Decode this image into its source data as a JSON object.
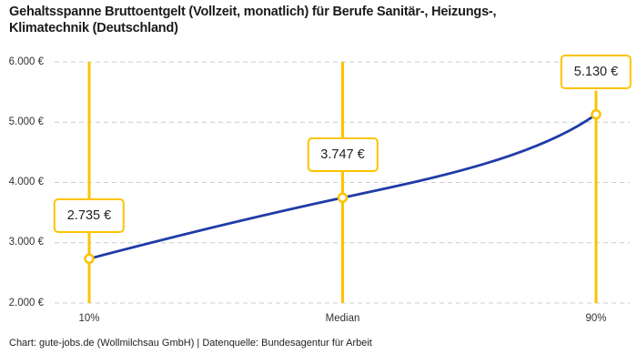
{
  "title": "Gehaltsspanne Bruttoentgelt (Vollzeit, monatlich) für Berufe Sanitär-, Heizungs-, Klimatechnik (Deutschland)",
  "footer": "Chart: gute-jobs.de (Wollmilchsau GmbH) | Datenquelle: Bundesagentur für Arbeit",
  "colors": {
    "accent_yellow": "#FDC300",
    "line_blue": "#1F3CA6",
    "grid_gray": "#CCCCCC",
    "text_dark": "#222222",
    "tick_text": "#333333",
    "background": "#FFFFFF"
  },
  "chart_data": {
    "type": "line",
    "title": "Gehaltsspanne Bruttoentgelt (Vollzeit, monatlich) für Berufe Sanitär-, Heizungs-, Klimatechnik (Deutschland)",
    "categories": [
      "10%",
      "Median",
      "90%"
    ],
    "values": [
      2735,
      3747,
      5130
    ],
    "point_labels": [
      "2.735 €",
      "3.747 €",
      "5.130 €"
    ],
    "xlabel": "",
    "ylabel": "",
    "ylim": [
      2000,
      6000
    ],
    "y_ticks": [
      {
        "value": 2000,
        "label": "2.000 €"
      },
      {
        "value": 3000,
        "label": "3.000 €"
      },
      {
        "value": 4000,
        "label": "4.000 €"
      },
      {
        "value": 5000,
        "label": "5.000 €"
      },
      {
        "value": 6000,
        "label": "6.000 €"
      }
    ],
    "grid": "horizontal-dashed",
    "legend_position": "none",
    "marker": "open-circle",
    "annotations": "value labels in yellow-outlined boxes above each percentile; vertical yellow guide lines at 10%, Median, 90%"
  }
}
